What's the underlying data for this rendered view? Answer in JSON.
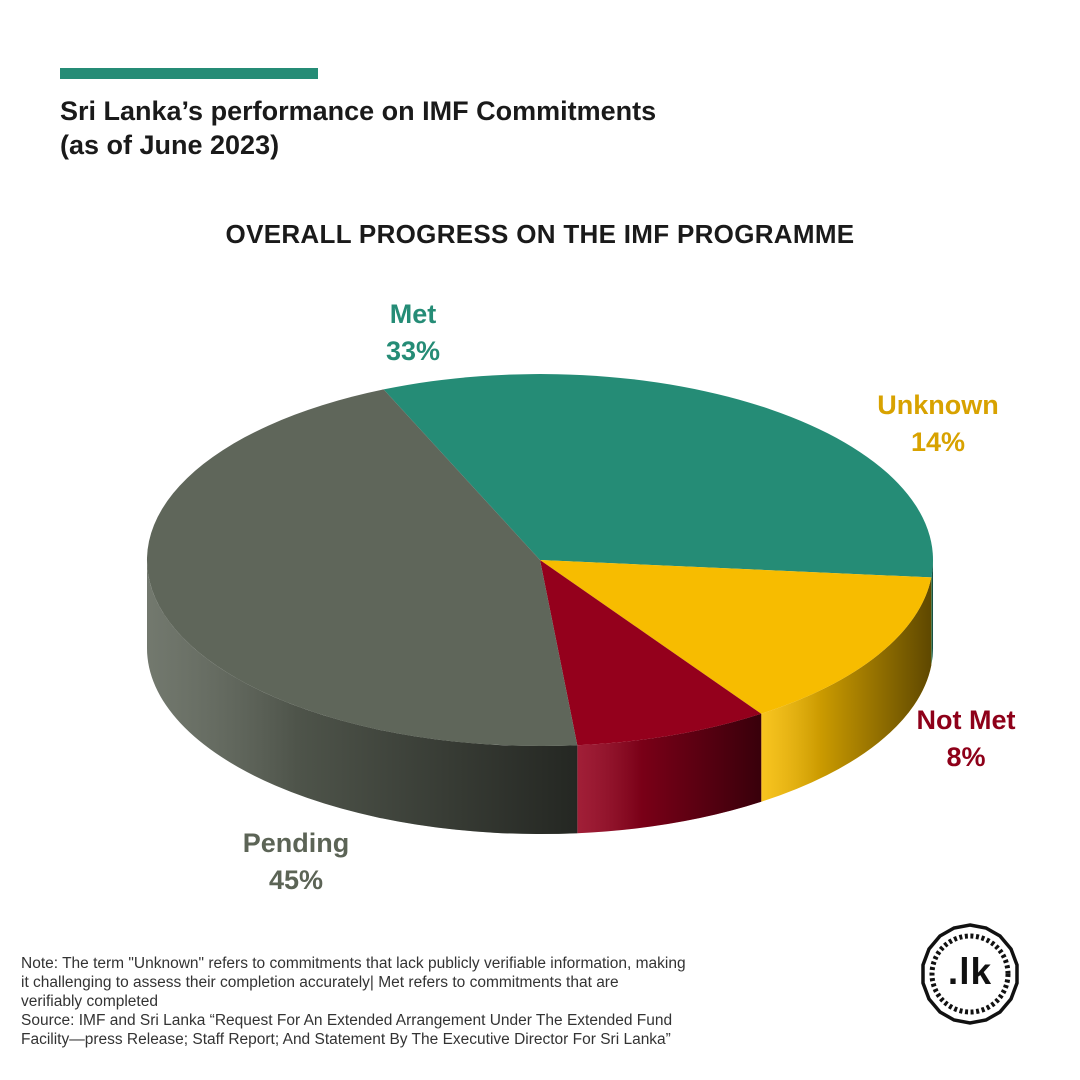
{
  "header": {
    "title_line1": "Sri Lanka’s performance on IMF Commitments",
    "title_line2": "(as of June 2023)",
    "accent_color": "#258c76"
  },
  "chart_data": {
    "type": "pie",
    "title": "OVERALL PROGRESS ON THE IMF PROGRAMME",
    "style": "3d-tilted",
    "slices": [
      {
        "label": "Met",
        "value": 33,
        "value_label": "33%",
        "color": "#258c76",
        "label_color": "#258c76"
      },
      {
        "label": "Unknown",
        "value": 14,
        "value_label": "14%",
        "color": "#f7bc00",
        "label_color": "#d8a200"
      },
      {
        "label": "Not Met",
        "value": 8,
        "value_label": "8%",
        "color": "#94001c",
        "label_color": "#8e0019"
      },
      {
        "label": "Pending",
        "value": 45,
        "value_label": "45%",
        "color": "#5f665a",
        "label_color": "#5c6456"
      }
    ]
  },
  "footer": {
    "note_lines": [
      "Note: The term \"Unknown\" refers to commitments that lack publicly verifiable information, making",
      "it challenging to assess their completion accurately| Met refers to commitments that are",
      "verifiably completed"
    ],
    "source_lines": [
      "Source: IMF and Sri Lanka “Request For An Extended Arrangement Under The Extended Fund",
      "Facility—press Release; Staff Report; And Statement By The Executive Director For Sri Lanka”"
    ]
  },
  "logo": {
    "text": ".lk"
  }
}
